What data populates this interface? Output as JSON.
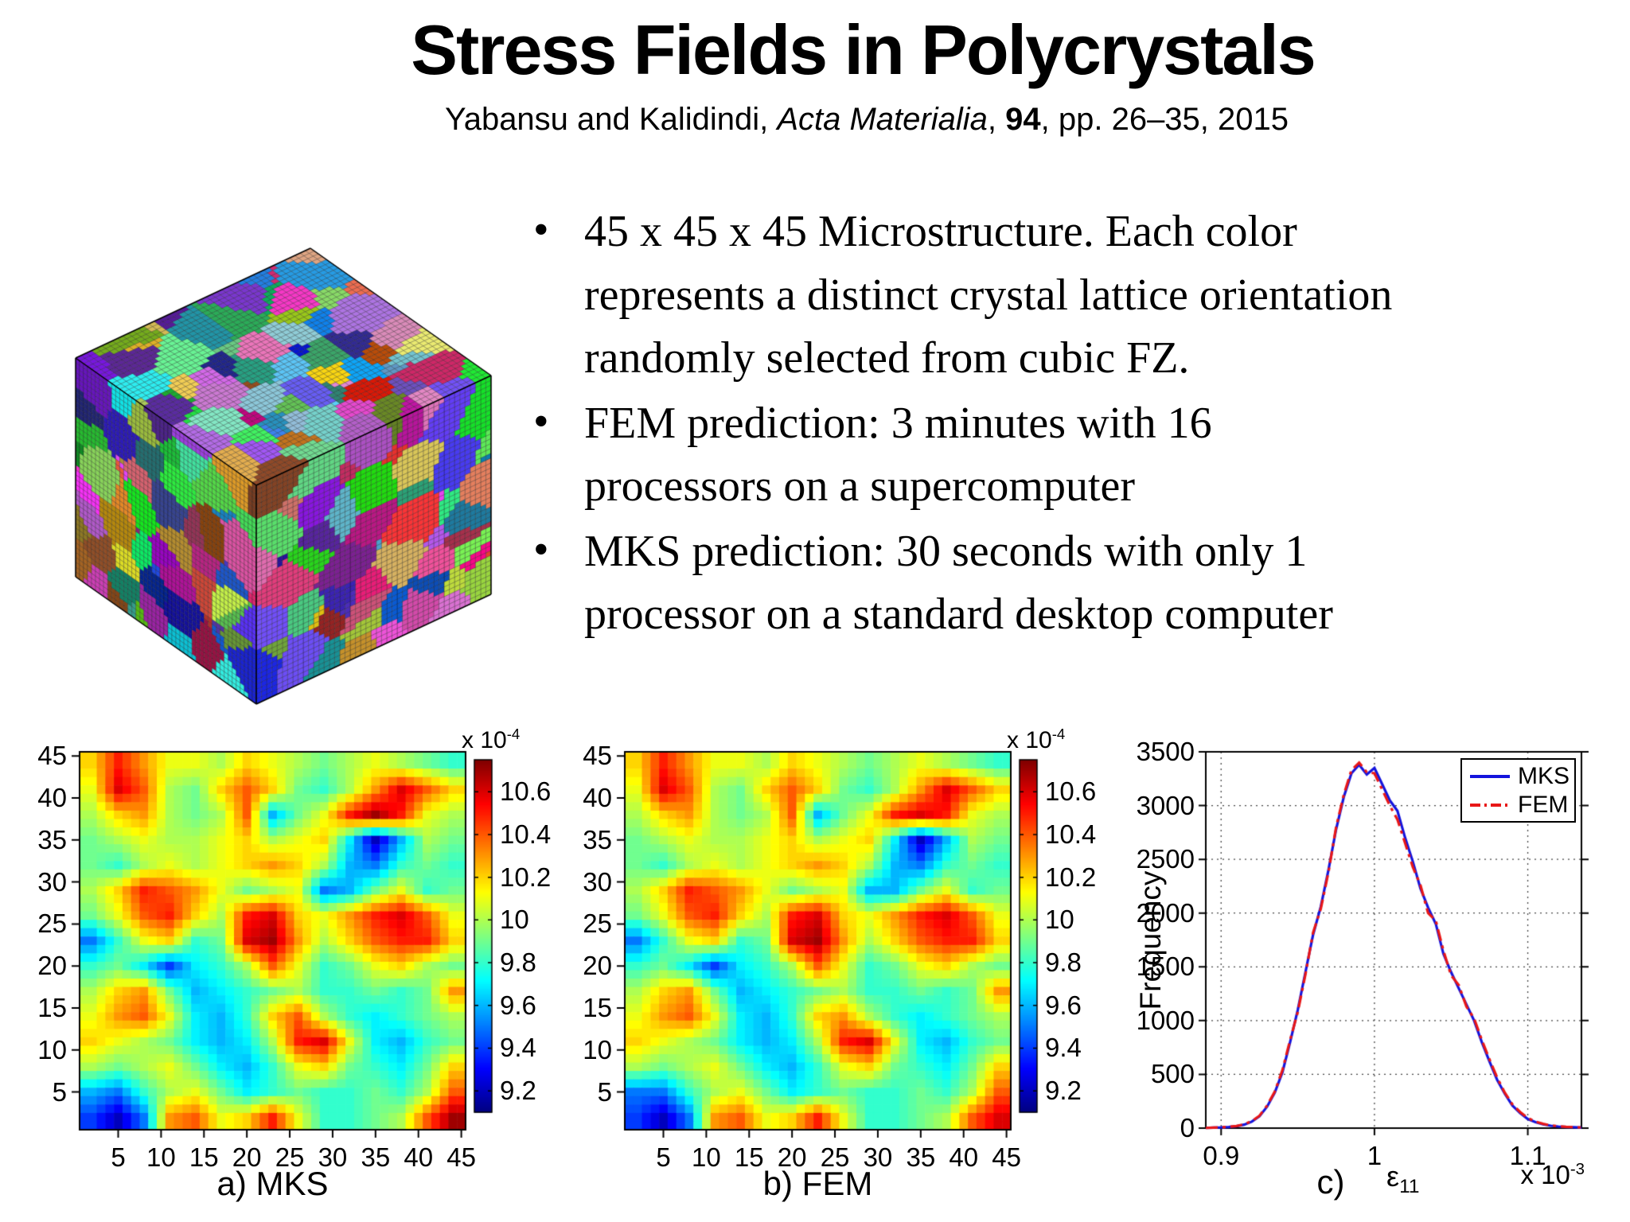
{
  "slide": {
    "title": "Stress Fields in Polycrystals",
    "citation": {
      "pre": "Yabansu and Kalidindi, ",
      "journal": "Acta Materialia",
      "sep": ", ",
      "volume": "94",
      "post": ", pp. 26–35, 2015"
    },
    "bullets": [
      [
        "45 x 45 x 45 Microstructure. Each color",
        "represents a distinct crystal lattice orientation",
        "randomly selected from cubic FZ."
      ],
      [
        "FEM prediction: 3 minutes with 16",
        "processors on a supercomputer"
      ],
      [
        "MKS prediction: 30 seconds with only 1",
        "processor on a standard desktop computer"
      ]
    ]
  },
  "cube": {
    "grid_size": 45
  },
  "chart_data": [
    {
      "id": "a",
      "type": "heatmap",
      "title": "a) MKS",
      "x_ticks": [
        5,
        10,
        15,
        20,
        25,
        30,
        35,
        40,
        45
      ],
      "y_ticks": [
        45,
        40,
        35,
        30,
        25,
        20,
        15,
        10,
        5
      ],
      "grid_size": 45,
      "vmin": 9.1,
      "vmax": 10.75,
      "value_scale": "1e-4",
      "colorbar": {
        "scale_base": "x 10",
        "scale_exp": "-4",
        "ticks": [
          10.6,
          10.4,
          10.2,
          10,
          9.8,
          9.6,
          9.4,
          9.2
        ]
      },
      "coarse_grid_15x15": [
        [
          10.2,
          10.5,
          10.3,
          10.1,
          10.1,
          10.0,
          10.2,
          10.1,
          10.0,
          9.9,
          10.0,
          10.1,
          10.0,
          9.9,
          9.8
        ],
        [
          10.1,
          10.6,
          10.4,
          10.0,
          9.9,
          10.2,
          10.4,
          10.2,
          9.9,
          9.8,
          10.0,
          10.3,
          10.6,
          10.4,
          10.2
        ],
        [
          10.0,
          10.2,
          10.3,
          10.0,
          9.9,
          10.0,
          10.4,
          9.6,
          9.9,
          10.1,
          10.5,
          10.7,
          10.5,
          10.1,
          10.0
        ],
        [
          9.9,
          10.0,
          10.1,
          10.0,
          10.0,
          10.1,
          10.2,
          10.0,
          10.1,
          10.2,
          9.7,
          9.2,
          9.6,
          10.0,
          9.9
        ],
        [
          9.9,
          9.8,
          10.0,
          10.1,
          10.0,
          10.1,
          10.2,
          10.3,
          10.2,
          10.0,
          9.6,
          9.5,
          9.8,
          9.9,
          9.8
        ],
        [
          10.0,
          10.2,
          10.5,
          10.4,
          10.3,
          10.1,
          9.9,
          10.0,
          10.1,
          9.5,
          9.6,
          9.9,
          10.1,
          9.8,
          9.9
        ],
        [
          9.9,
          10.1,
          10.4,
          10.5,
          10.2,
          10.0,
          10.5,
          10.6,
          10.2,
          10.1,
          10.3,
          10.5,
          10.6,
          10.4,
          10.1
        ],
        [
          9.5,
          9.8,
          10.1,
          10.2,
          9.8,
          9.9,
          10.6,
          10.7,
          10.3,
          10.0,
          10.2,
          10.4,
          10.5,
          10.5,
          10.2
        ],
        [
          9.8,
          9.9,
          9.7,
          9.4,
          9.7,
          9.8,
          10.0,
          10.4,
          10.1,
          9.8,
          9.9,
          10.1,
          10.2,
          10.0,
          9.9
        ],
        [
          10.0,
          10.2,
          10.3,
          9.9,
          9.6,
          9.7,
          9.8,
          9.9,
          10.0,
          9.8,
          9.8,
          9.9,
          9.8,
          9.9,
          10.3
        ],
        [
          10.1,
          10.3,
          10.4,
          10.1,
          9.7,
          9.6,
          9.8,
          10.2,
          10.4,
          10.0,
          9.8,
          9.7,
          9.8,
          9.9,
          10.0
        ],
        [
          10.2,
          10.1,
          10.0,
          9.9,
          9.7,
          9.6,
          9.7,
          10.0,
          10.5,
          10.6,
          10.1,
          9.7,
          9.6,
          9.8,
          9.9
        ],
        [
          10.0,
          9.9,
          10.0,
          10.1,
          9.9,
          9.7,
          9.6,
          9.8,
          10.1,
          10.2,
          9.9,
          9.8,
          9.7,
          9.9,
          10.2
        ],
        [
          9.6,
          9.5,
          9.8,
          10.0,
          10.1,
          9.9,
          9.7,
          9.8,
          9.9,
          9.8,
          9.8,
          9.9,
          9.8,
          10.0,
          10.4
        ],
        [
          9.4,
          9.2,
          9.5,
          10.3,
          10.4,
          10.1,
          10.2,
          10.5,
          10.1,
          9.8,
          9.8,
          9.9,
          10.0,
          10.4,
          10.7
        ]
      ]
    },
    {
      "id": "b",
      "type": "heatmap",
      "title": "b) FEM",
      "x_ticks": [
        5,
        10,
        15,
        20,
        25,
        30,
        35,
        40,
        45
      ],
      "y_ticks": [
        45,
        40,
        35,
        30,
        25,
        20,
        15,
        10,
        5
      ],
      "grid_size": 45,
      "vmin": 9.1,
      "vmax": 10.75,
      "value_scale": "1e-4",
      "colorbar": {
        "scale_base": "x 10",
        "scale_exp": "-4",
        "ticks": [
          10.6,
          10.4,
          10.2,
          10,
          9.8,
          9.6,
          9.4,
          9.2
        ]
      },
      "coarse_grid_15x15": [
        [
          10.2,
          10.5,
          10.3,
          10.1,
          10.1,
          10.0,
          10.2,
          10.1,
          10.0,
          9.9,
          10.0,
          10.1,
          10.0,
          9.9,
          9.8
        ],
        [
          10.1,
          10.6,
          10.4,
          10.0,
          9.9,
          10.2,
          10.4,
          10.2,
          9.9,
          9.8,
          10.0,
          10.3,
          10.6,
          10.4,
          10.2
        ],
        [
          10.0,
          10.2,
          10.3,
          10.0,
          9.9,
          10.0,
          10.4,
          9.6,
          9.9,
          10.1,
          10.5,
          10.6,
          10.5,
          10.1,
          10.0
        ],
        [
          9.9,
          10.0,
          10.1,
          10.0,
          10.0,
          10.1,
          10.2,
          10.0,
          10.1,
          10.2,
          9.7,
          9.2,
          9.6,
          10.0,
          9.9
        ],
        [
          9.9,
          9.8,
          10.0,
          10.1,
          10.0,
          10.1,
          10.2,
          10.3,
          10.2,
          10.0,
          9.6,
          9.5,
          9.8,
          9.9,
          9.8
        ],
        [
          10.0,
          10.2,
          10.5,
          10.4,
          10.3,
          10.1,
          9.9,
          10.0,
          10.1,
          9.6,
          9.6,
          9.9,
          10.1,
          9.8,
          9.9
        ],
        [
          9.9,
          10.1,
          10.4,
          10.5,
          10.2,
          10.0,
          10.5,
          10.6,
          10.2,
          10.1,
          10.3,
          10.5,
          10.6,
          10.4,
          10.1
        ],
        [
          9.5,
          9.8,
          10.1,
          10.2,
          9.8,
          9.9,
          10.6,
          10.7,
          10.3,
          10.0,
          10.2,
          10.4,
          10.5,
          10.5,
          10.2
        ],
        [
          9.8,
          9.9,
          9.7,
          9.4,
          9.7,
          9.8,
          10.0,
          10.4,
          10.1,
          9.8,
          9.9,
          10.1,
          10.2,
          10.0,
          9.9
        ],
        [
          10.0,
          10.2,
          10.3,
          9.9,
          9.6,
          9.7,
          9.8,
          9.9,
          10.0,
          9.8,
          9.8,
          9.9,
          9.8,
          9.9,
          10.3
        ],
        [
          10.1,
          10.3,
          10.4,
          10.1,
          9.7,
          9.6,
          9.8,
          10.2,
          10.3,
          10.0,
          9.8,
          9.7,
          9.8,
          9.9,
          10.0
        ],
        [
          10.2,
          10.1,
          10.0,
          9.9,
          9.7,
          9.6,
          9.7,
          10.0,
          10.5,
          10.6,
          10.1,
          9.7,
          9.6,
          9.8,
          9.9
        ],
        [
          10.0,
          9.9,
          10.0,
          10.1,
          9.9,
          9.7,
          9.6,
          9.8,
          10.1,
          10.2,
          9.9,
          9.8,
          9.7,
          9.9,
          10.2
        ],
        [
          9.5,
          9.5,
          9.8,
          10.0,
          10.1,
          9.9,
          9.7,
          9.8,
          9.9,
          9.8,
          9.8,
          9.9,
          9.8,
          10.0,
          10.4
        ],
        [
          9.4,
          9.2,
          9.5,
          10.3,
          10.4,
          10.1,
          10.2,
          10.5,
          10.1,
          9.8,
          9.8,
          9.9,
          10.0,
          10.4,
          10.6
        ]
      ]
    },
    {
      "id": "c",
      "type": "line",
      "caption": "c)",
      "xlabel": {
        "symbol": "ε",
        "sub": "11"
      },
      "ylabel": "Frequency",
      "x_scale": {
        "base": "x 10",
        "exp": "-3"
      },
      "x_ticks": [
        0.9,
        1,
        1.1
      ],
      "y_ticks": [
        0,
        500,
        1000,
        1500,
        2000,
        2500,
        3000,
        3500
      ],
      "xlim": [
        0.89,
        1.135
      ],
      "ylim": [
        0,
        3500
      ],
      "grid": "dotted",
      "legend_position": "top-right",
      "x": [
        0.89,
        0.895,
        0.9,
        0.905,
        0.91,
        0.915,
        0.92,
        0.925,
        0.93,
        0.935,
        0.94,
        0.945,
        0.95,
        0.955,
        0.96,
        0.965,
        0.97,
        0.975,
        0.98,
        0.985,
        0.99,
        0.995,
        1,
        1.005,
        1.01,
        1.015,
        1.02,
        1.025,
        1.03,
        1.035,
        1.04,
        1.045,
        1.05,
        1.055,
        1.06,
        1.065,
        1.07,
        1.075,
        1.08,
        1.085,
        1.09,
        1.095,
        1.1,
        1.105,
        1.11,
        1.115,
        1.12,
        1.125,
        1.13,
        1.135
      ],
      "series": [
        {
          "name": "MKS",
          "color": "#1414dd",
          "style": "solid",
          "y": [
            2,
            4,
            6,
            10,
            18,
            32,
            60,
            110,
            200,
            330,
            520,
            800,
            1100,
            1450,
            1800,
            2060,
            2400,
            2780,
            3080,
            3300,
            3380,
            3290,
            3350,
            3200,
            3050,
            2950,
            2700,
            2480,
            2230,
            2050,
            1900,
            1620,
            1450,
            1300,
            1150,
            1000,
            800,
            620,
            450,
            320,
            210,
            140,
            85,
            55,
            35,
            22,
            15,
            10,
            8,
            5
          ]
        },
        {
          "name": "FEM",
          "color": "#e81717",
          "style": "dash-dot",
          "y": [
            2,
            5,
            8,
            12,
            20,
            35,
            65,
            115,
            210,
            340,
            540,
            820,
            1080,
            1430,
            1820,
            2040,
            2380,
            2800,
            3100,
            3330,
            3400,
            3310,
            3300,
            3150,
            3000,
            2870,
            2650,
            2430,
            2260,
            2000,
            1930,
            1650,
            1420,
            1330,
            1130,
            1020,
            820,
            640,
            470,
            330,
            220,
            150,
            95,
            60,
            40,
            25,
            18,
            12,
            9,
            6
          ]
        }
      ]
    }
  ]
}
